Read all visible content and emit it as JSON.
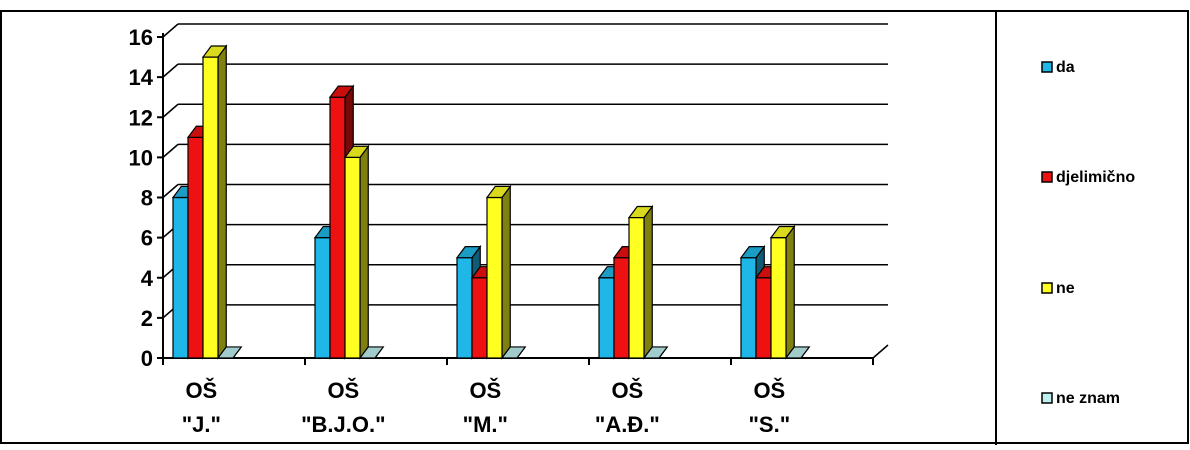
{
  "chart_data": {
    "type": "bar",
    "title": "",
    "xlabel": "",
    "ylabel": "",
    "ylim": [
      0,
      16
    ],
    "yticks": [
      0,
      2,
      4,
      6,
      8,
      10,
      12,
      14,
      16
    ],
    "grid": true,
    "three_d": true,
    "legend_position": "right",
    "categories": [
      [
        "OŠ",
        "\"J.\""
      ],
      [
        "OŠ",
        "\"B.J.O.\""
      ],
      [
        "OŠ",
        "\"M.\""
      ],
      [
        "OŠ",
        "\"A.Đ.\""
      ],
      [
        "OŠ",
        "\"S.\""
      ]
    ],
    "series": [
      {
        "name": "da",
        "color": "#1fb7e8",
        "values": [
          8,
          6,
          5,
          4,
          5
        ]
      },
      {
        "name": "djelimično",
        "color": "#ee1111",
        "values": [
          11,
          13,
          4,
          5,
          4
        ]
      },
      {
        "name": "ne",
        "color": "#ffff22",
        "values": [
          15,
          10,
          8,
          7,
          6
        ]
      },
      {
        "name": "ne znam",
        "color": "#bfefef",
        "values": [
          0,
          0,
          0,
          0,
          0
        ]
      }
    ]
  }
}
